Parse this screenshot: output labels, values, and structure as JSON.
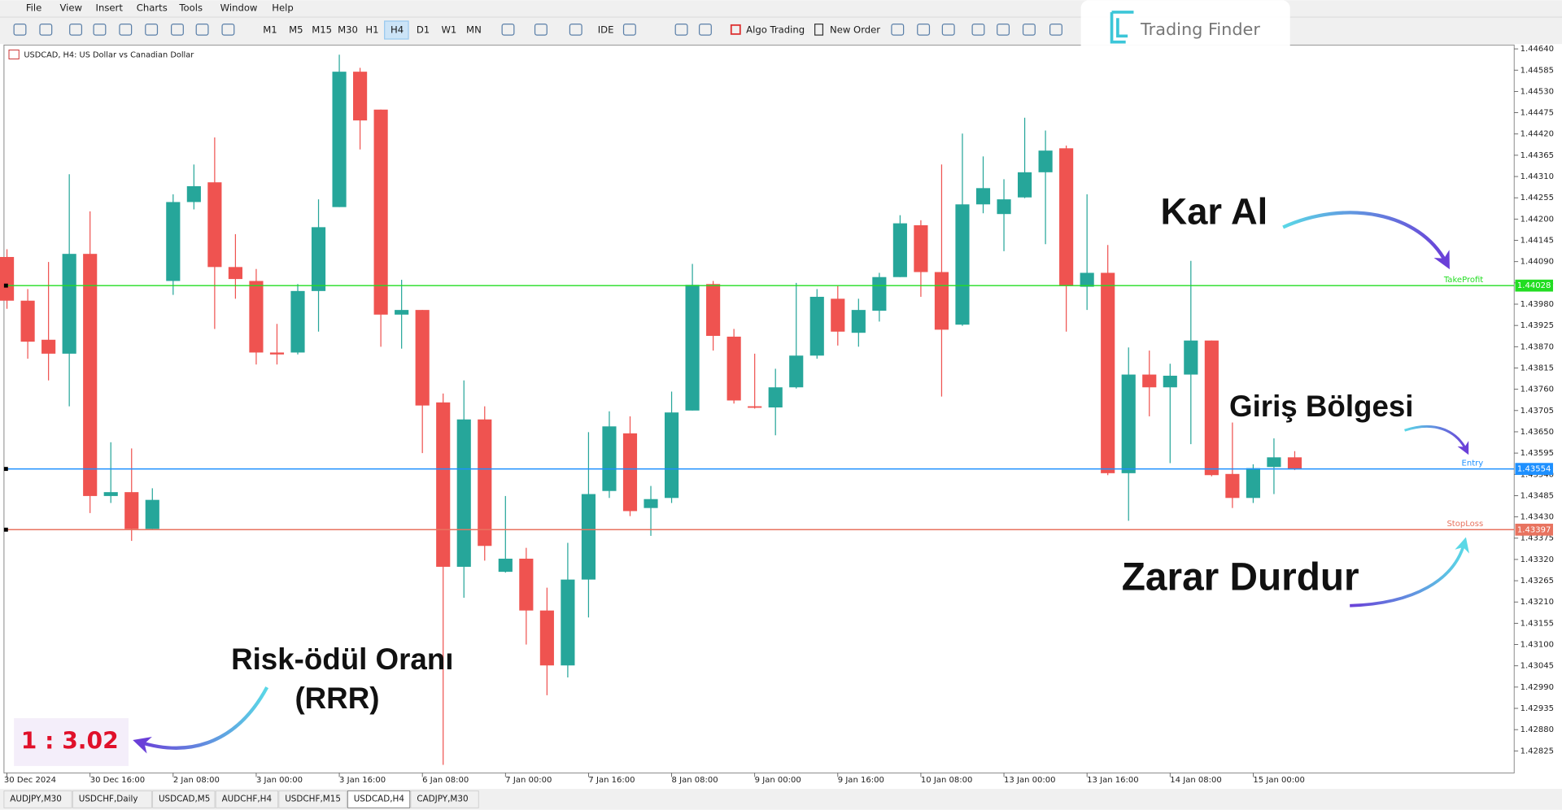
{
  "menu": [
    "File",
    "View",
    "Insert",
    "Charts",
    "Tools",
    "Window",
    "Help"
  ],
  "toolbar": {
    "timeframes": [
      "M1",
      "M5",
      "M15",
      "M30",
      "H1",
      "H4",
      "D1",
      "W1",
      "MN"
    ],
    "active": "H4",
    "ide": "IDE",
    "algo_trading": "Algo Trading",
    "new_order": "New Order"
  },
  "logo": "Trading Finder",
  "chart": {
    "type": "candlestick",
    "title": "USDCAD, H4:  US Dollar vs Canadian Dollar",
    "up_color": "#26a69a",
    "down_color": "#ef5350",
    "categories": [
      "30 Dec 2024",
      null,
      null,
      null,
      "30 Dec 16:00",
      null,
      null,
      null,
      "2 Jan 08:00",
      null,
      null,
      null,
      "3 Jan 00:00",
      null,
      null,
      null,
      "3 Jan 16:00",
      null,
      null,
      null,
      "6 Jan 08:00",
      null,
      null,
      null,
      "7 Jan 00:00",
      null,
      null,
      null,
      "7 Jan 16:00",
      null,
      null,
      null,
      "8 Jan 08:00",
      null,
      null,
      null,
      "9 Jan 00:00",
      null,
      null,
      null,
      "9 Jan 16:00",
      null,
      null,
      null,
      "10 Jan 08:00",
      null,
      null,
      null,
      "13 Jan 00:00",
      null,
      null,
      null,
      "13 Jan 16:00",
      null,
      null,
      null,
      "14 Jan 08:00",
      null,
      null,
      null,
      "15 Jan 00:00",
      null,
      null
    ],
    "open": [
      1.44102,
      1.43989,
      1.43888,
      1.43852,
      1.4411,
      1.43484,
      1.43494,
      1.43399,
      1.4404,
      1.44244,
      1.44295,
      1.44076,
      1.4404,
      1.43855,
      1.43855,
      1.44014,
      1.44231,
      1.44581,
      1.44483,
      1.43953,
      1.43965,
      1.43726,
      1.43301,
      1.43682,
      1.43288,
      1.43322,
      1.43188,
      1.43046,
      1.43268,
      1.43497,
      1.43646,
      1.43453,
      1.43479,
      1.43705,
      1.44032,
      1.43896,
      1.43716,
      1.43713,
      1.43765,
      1.43847,
      1.43994,
      1.43906,
      1.43963,
      1.4405,
      1.44184,
      1.44063,
      1.43927,
      1.44238,
      1.44213,
      1.44256,
      1.44321,
      1.44383,
      1.44025,
      1.44061,
      1.43543,
      1.43798,
      1.43765,
      1.43798,
      1.43886,
      1.43541,
      1.43479,
      1.43559,
      1.43584
    ],
    "high": [
      1.44122,
      1.44019,
      1.44089,
      1.44316,
      1.4422,
      1.43623,
      1.43607,
      1.43504,
      1.44264,
      1.44341,
      1.44411,
      1.44161,
      1.44071,
      1.43929,
      1.44032,
      1.44251,
      1.44625,
      1.44591,
      1.44483,
      1.44043,
      1.43965,
      1.43749,
      1.43783,
      1.43716,
      1.43484,
      1.4335,
      1.43247,
      1.43363,
      1.43649,
      1.43703,
      1.4369,
      1.4351,
      1.43754,
      1.44084,
      1.4404,
      1.43916,
      1.43852,
      1.43813,
      1.44035,
      1.44019,
      1.44027,
      1.43994,
      1.44061,
      1.4421,
      1.44197,
      1.44341,
      1.44421,
      1.44362,
      1.44303,
      1.44462,
      1.44429,
      1.4439,
      1.44264,
      1.44133,
      1.43868,
      1.4386,
      1.43826,
      1.44092,
      1.43886,
      1.43674,
      1.43566,
      1.43633,
      1.436
    ],
    "low": [
      1.43968,
      1.43839,
      1.43783,
      1.43716,
      1.4344,
      1.43466,
      1.43368,
      1.43399,
      1.44004,
      1.44225,
      1.43916,
      1.43994,
      1.43824,
      1.43824,
      1.4385,
      1.43909,
      1.44231,
      1.4438,
      1.4387,
      1.43865,
      1.43595,
      1.42789,
      1.43221,
      1.43317,
      1.43286,
      1.431,
      1.42969,
      1.43015,
      1.4317,
      1.43479,
      1.43432,
      1.43381,
      1.43466,
      1.43705,
      1.4386,
      1.43723,
      1.4371,
      1.43641,
      1.43762,
      1.43839,
      1.43873,
      1.4387,
      1.43935,
      1.4405,
      1.43999,
      1.43741,
      1.43924,
      1.44215,
      1.44117,
      1.44254,
      1.44135,
      1.43909,
      1.43965,
      1.43538,
      1.4342,
      1.4369,
      1.43569,
      1.43618,
      1.43535,
      1.43453,
      1.43466,
      1.43489,
      1.43551
    ],
    "close": [
      1.43989,
      1.43883,
      1.43852,
      1.4411,
      1.43484,
      1.43494,
      1.43399,
      1.43474,
      1.44244,
      1.44285,
      1.44076,
      1.44045,
      1.43855,
      1.4385,
      1.44014,
      1.44179,
      1.44581,
      1.44455,
      1.43953,
      1.43965,
      1.43718,
      1.43301,
      1.43682,
      1.43355,
      1.43322,
      1.43188,
      1.43046,
      1.43268,
      1.43489,
      1.43664,
      1.43445,
      1.43476,
      1.437,
      1.4403,
      1.43898,
      1.43731,
      1.43713,
      1.43765,
      1.43847,
      1.43999,
      1.43909,
      1.43965,
      1.4405,
      1.44189,
      1.44063,
      1.43914,
      1.44238,
      1.4428,
      1.44251,
      1.44321,
      1.44377,
      1.44027,
      1.44061,
      1.43543,
      1.43798,
      1.43765,
      1.43795,
      1.43886,
      1.43538,
      1.43479,
      1.43556,
      1.43584,
      1.43553
    ],
    "ylim": [
      1.42768,
      1.4465
    ],
    "yticks": [
      {
        "value": 1.4464,
        "label": "1.44640"
      },
      1.44585,
      {
        "value": 1.4453,
        "label": "1.44530"
      },
      1.44475,
      {
        "value": 1.4442,
        "label": "1.44420"
      },
      1.44365,
      {
        "value": 1.4431,
        "label": "1.44310"
      },
      1.44255,
      {
        "value": 1.442,
        "label": "1.44200"
      },
      1.44145,
      {
        "value": 1.4409,
        "label": "1.44090"
      },
      1.44035,
      {
        "value": 1.4398,
        "label": "1.43980"
      },
      1.43925,
      {
        "value": 1.4387,
        "label": "1.43870"
      },
      1.43815,
      {
        "value": 1.4376,
        "label": "1.43760"
      },
      1.43705,
      {
        "value": 1.4365,
        "label": "1.43650"
      },
      1.43595,
      {
        "value": 1.4354,
        "label": "1.43540"
      },
      1.43485,
      {
        "value": 1.4343,
        "label": "1.43430"
      },
      1.43375,
      {
        "value": 1.4332,
        "label": "1.43320"
      },
      1.43265,
      {
        "value": 1.4321,
        "label": "1.43210"
      },
      1.43155,
      {
        "value": 1.431,
        "label": "1.43100"
      },
      1.43045,
      {
        "value": 1.4299,
        "label": "1.42990"
      },
      1.42935,
      {
        "value": 1.4288,
        "label": "1.42880"
      },
      1.42825
    ],
    "levels": [
      {
        "name": "TakeProfit",
        "price": 1.44028,
        "color": "#22dd22"
      },
      {
        "name": "Entry",
        "price": 1.43554,
        "color": "#1e90ff"
      },
      {
        "name": "StopLoss",
        "price": 1.43397,
        "color": "#e8735f"
      }
    ]
  },
  "annotations": {
    "take_profit": "Kar Al",
    "entry": "Giriş Bölgesi",
    "stop_loss": "Zarar Durdur",
    "rrr_title": "Risk-ödül Oranı",
    "rrr_abbr": "(RRR)",
    "rrr": "1 : 3.02"
  },
  "tabs": [
    "AUDJPY,M30",
    "USDCHF,Daily",
    "USDCAD,M5",
    "AUDCHF,H4",
    "USDCHF,M15",
    "USDCAD,H4",
    "CADJPY,M30"
  ],
  "active_tab": "USDCAD,H4"
}
